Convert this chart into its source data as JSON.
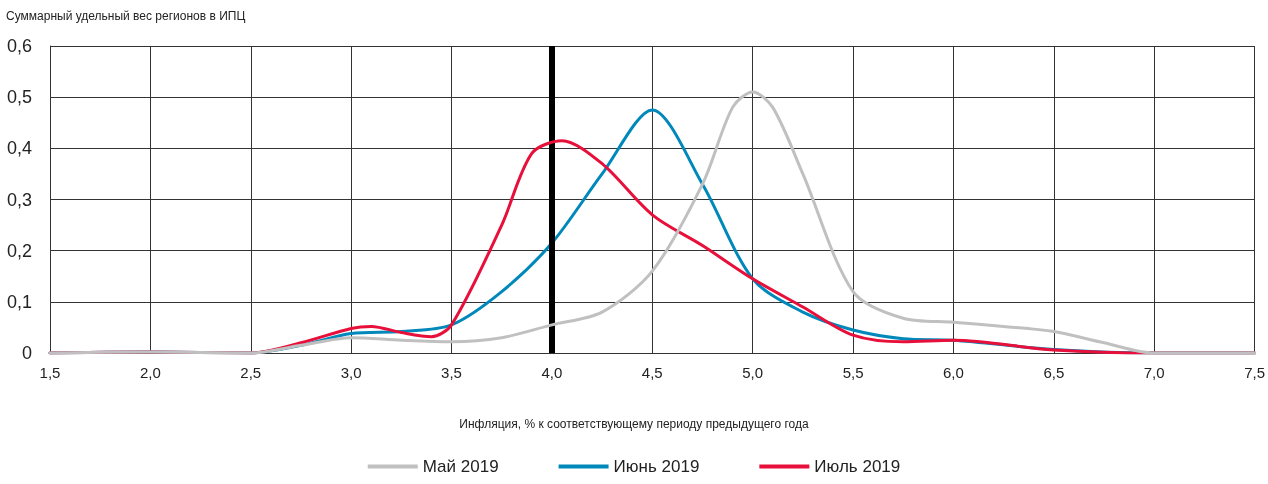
{
  "chart_data": {
    "type": "line",
    "ylabel": "Суммарный удельный вес регионов в ИПЦ",
    "xlabel": "Инфляция, % к соответствующему периоду предыдущего года",
    "xlim": [
      1.5,
      7.5
    ],
    "xticks": [
      {
        "value": 1.5,
        "label": "1,5"
      },
      {
        "value": 2.0,
        "label": "2,0"
      },
      {
        "value": 2.5,
        "label": "2,5"
      },
      {
        "value": 3.0,
        "label": "3,0"
      },
      {
        "value": 3.5,
        "label": "3,5"
      },
      {
        "value": 4.0,
        "label": "4,0"
      },
      {
        "value": 4.5,
        "label": "4,5"
      },
      {
        "value": 5.0,
        "label": "5,0"
      },
      {
        "value": 5.5,
        "label": "5,5"
      },
      {
        "value": 6.0,
        "label": "6,0"
      },
      {
        "value": 6.5,
        "label": "6,5"
      },
      {
        "value": 7.0,
        "label": "7,0"
      },
      {
        "value": 7.5,
        "label": "7,5"
      }
    ],
    "ylim": [
      0,
      0.6
    ],
    "yticks": [
      0,
      {
        "value": 0.1,
        "label": "0,1"
      },
      {
        "value": 0.2,
        "label": "0,2"
      },
      {
        "value": 0.3,
        "label": "0,3"
      },
      {
        "value": 0.4,
        "label": "0,4"
      },
      {
        "value": 0.5,
        "label": "0,5"
      },
      {
        "value": 0.6,
        "label": "0,6"
      }
    ],
    "grid": true,
    "legend": "bottom",
    "marker": "none",
    "line_style": "solid",
    "ref_lines": [
      {
        "axis": "x",
        "value": 4.0,
        "label": null,
        "color": "#000000"
      }
    ],
    "series": [
      {
        "name": "Май 2019",
        "color": "#c0c0c0",
        "x": [
          1.5,
          2.0,
          2.5,
          2.75,
          3.0,
          3.25,
          3.5,
          3.75,
          4.0,
          4.25,
          4.5,
          4.75,
          4.9,
          5.0,
          5.1,
          5.25,
          5.5,
          5.75,
          6.0,
          6.25,
          6.5,
          6.75,
          7.0,
          7.5
        ],
        "values": [
          0,
          0.002,
          0,
          0.015,
          0.03,
          0.025,
          0.022,
          0.03,
          0.055,
          0.08,
          0.16,
          0.33,
          0.48,
          0.51,
          0.48,
          0.35,
          0.12,
          0.068,
          0.06,
          0.052,
          0.042,
          0.02,
          0,
          0
        ]
      },
      {
        "name": "Июнь 2019",
        "color": "#0088bb",
        "x": [
          1.5,
          2.0,
          2.5,
          2.75,
          3.0,
          3.25,
          3.5,
          3.75,
          4.0,
          4.25,
          4.5,
          4.75,
          5.0,
          5.25,
          5.5,
          5.75,
          6.0,
          6.5,
          7.0,
          7.5
        ],
        "values": [
          0,
          0.002,
          0,
          0.015,
          0.038,
          0.042,
          0.055,
          0.12,
          0.215,
          0.35,
          0.475,
          0.33,
          0.145,
          0.08,
          0.045,
          0.028,
          0.025,
          0.007,
          0,
          0
        ]
      },
      {
        "name": "Июль 2019",
        "color": "#e8103a",
        "x": [
          1.5,
          2.0,
          2.5,
          2.75,
          3.0,
          3.1,
          3.25,
          3.4,
          3.5,
          3.75,
          3.9,
          4.05,
          4.25,
          4.5,
          4.75,
          5.0,
          5.25,
          5.5,
          5.75,
          6.0,
          6.5,
          7.0,
          7.5
        ],
        "values": [
          0,
          0.002,
          0,
          0.02,
          0.048,
          0.052,
          0.04,
          0.032,
          0.055,
          0.25,
          0.39,
          0.415,
          0.37,
          0.27,
          0.21,
          0.145,
          0.09,
          0.035,
          0.022,
          0.025,
          0.006,
          0,
          0
        ]
      }
    ]
  }
}
